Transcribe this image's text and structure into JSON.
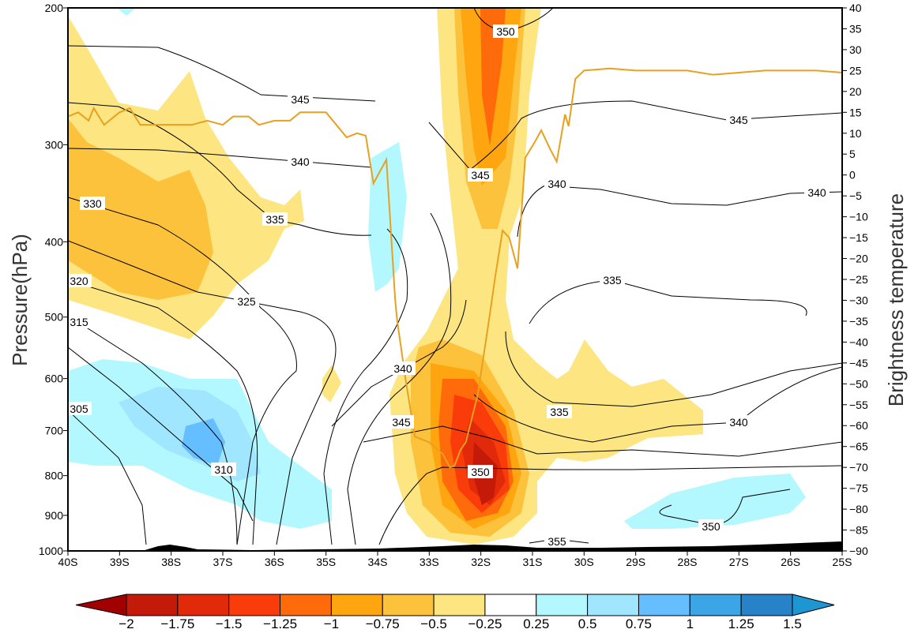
{
  "chart_data": {
    "type": "contour",
    "title": "",
    "xlabel": "",
    "ylabel": "Pressure(hPa)",
    "y2label": "Brightness temperature",
    "x_ticks": [
      "40S",
      "39S",
      "38S",
      "37S",
      "36S",
      "35S",
      "34S",
      "33S",
      "32S",
      "31S",
      "30S",
      "29S",
      "28S",
      "27S",
      "26S",
      "25S"
    ],
    "xlim": [
      40,
      25
    ],
    "y_ticks": [
      200,
      300,
      400,
      500,
      600,
      700,
      800,
      900,
      1000
    ],
    "ylim": [
      200,
      1000
    ],
    "y2_ticks": [
      40,
      35,
      30,
      25,
      20,
      15,
      10,
      5,
      0,
      -5,
      -10,
      -15,
      -20,
      -25,
      -30,
      -35,
      -40,
      -45,
      -50,
      -55,
      -60,
      -65,
      -70,
      -75,
      -80,
      -85,
      -90
    ],
    "y2lim": [
      -90,
      40
    ],
    "colorbar": {
      "labels": [
        "−2",
        "−1.75",
        "−1.5",
        "−1.25",
        "−1",
        "−0.75",
        "−0.5",
        "−0.25",
        "0.25",
        "0.5",
        "0.75",
        "1",
        "1.25",
        "1.5"
      ],
      "levels": [
        -2,
        -1.75,
        -1.5,
        -1.25,
        -1,
        -0.75,
        -0.5,
        -0.25,
        0.25,
        0.5,
        0.75,
        1,
        1.25,
        1.5
      ],
      "colors": [
        "#a00000",
        "#c41a0a",
        "#e02a0a",
        "#fa3c0a",
        "#ff6a0a",
        "#ffa50f",
        "#fcc23c",
        "#fde682",
        "#ffffff",
        "#b4f8ff",
        "#a0e6ff",
        "#64beff",
        "#3ca5e6",
        "#2882c8",
        "#1e96d2"
      ]
    },
    "contour_labels": [
      "350",
      "345",
      "345",
      "345",
      "340",
      "340",
      "340",
      "335",
      "335",
      "335",
      "330",
      "325",
      "320",
      "315",
      "310",
      "305",
      "340",
      "345",
      "350",
      "350",
      "355",
      "340"
    ],
    "brightness_temperature": {
      "color": "#e8a020",
      "lat": [
        40.0,
        39.8,
        39.6,
        39.5,
        39.3,
        39.0,
        38.8,
        38.6,
        38.4,
        38.0,
        37.6,
        37.3,
        37.0,
        36.8,
        36.5,
        36.3,
        36.0,
        35.7,
        35.5,
        35.3,
        35.0,
        34.8,
        34.6,
        34.4,
        34.23,
        34.08,
        33.83,
        33.66,
        33.62,
        33.46,
        33.28,
        33.0,
        32.74,
        32.6,
        32.51,
        32.4,
        32.29,
        32.06,
        31.83,
        31.72,
        31.58,
        31.45,
        31.29,
        31.14,
        30.95,
        30.83,
        30.65,
        30.53,
        30.37,
        30.3,
        30.17,
        30.0,
        29.5,
        29.0,
        28.0,
        27.5,
        27.0,
        26.5,
        26.0,
        25.5,
        25.0
      ],
      "values": [
        14,
        15,
        13,
        16,
        12,
        15,
        16,
        12,
        12,
        12,
        12,
        13,
        12,
        14,
        14,
        12,
        13,
        13,
        15,
        15,
        15,
        12,
        9,
        10,
        9.4,
        -2,
        3.7,
        -29.9,
        -35,
        -48.8,
        -62.6,
        -64,
        -66.8,
        -70,
        -69.6,
        -66,
        -63.9,
        -52.6,
        -33.7,
        -24.2,
        -13.3,
        -15,
        -22.4,
        4.1,
        8,
        10.7,
        6,
        3.2,
        14.5,
        11.7,
        23,
        25,
        25.5,
        25,
        25,
        24,
        24.5,
        25,
        25,
        25,
        24.5
      ]
    }
  }
}
